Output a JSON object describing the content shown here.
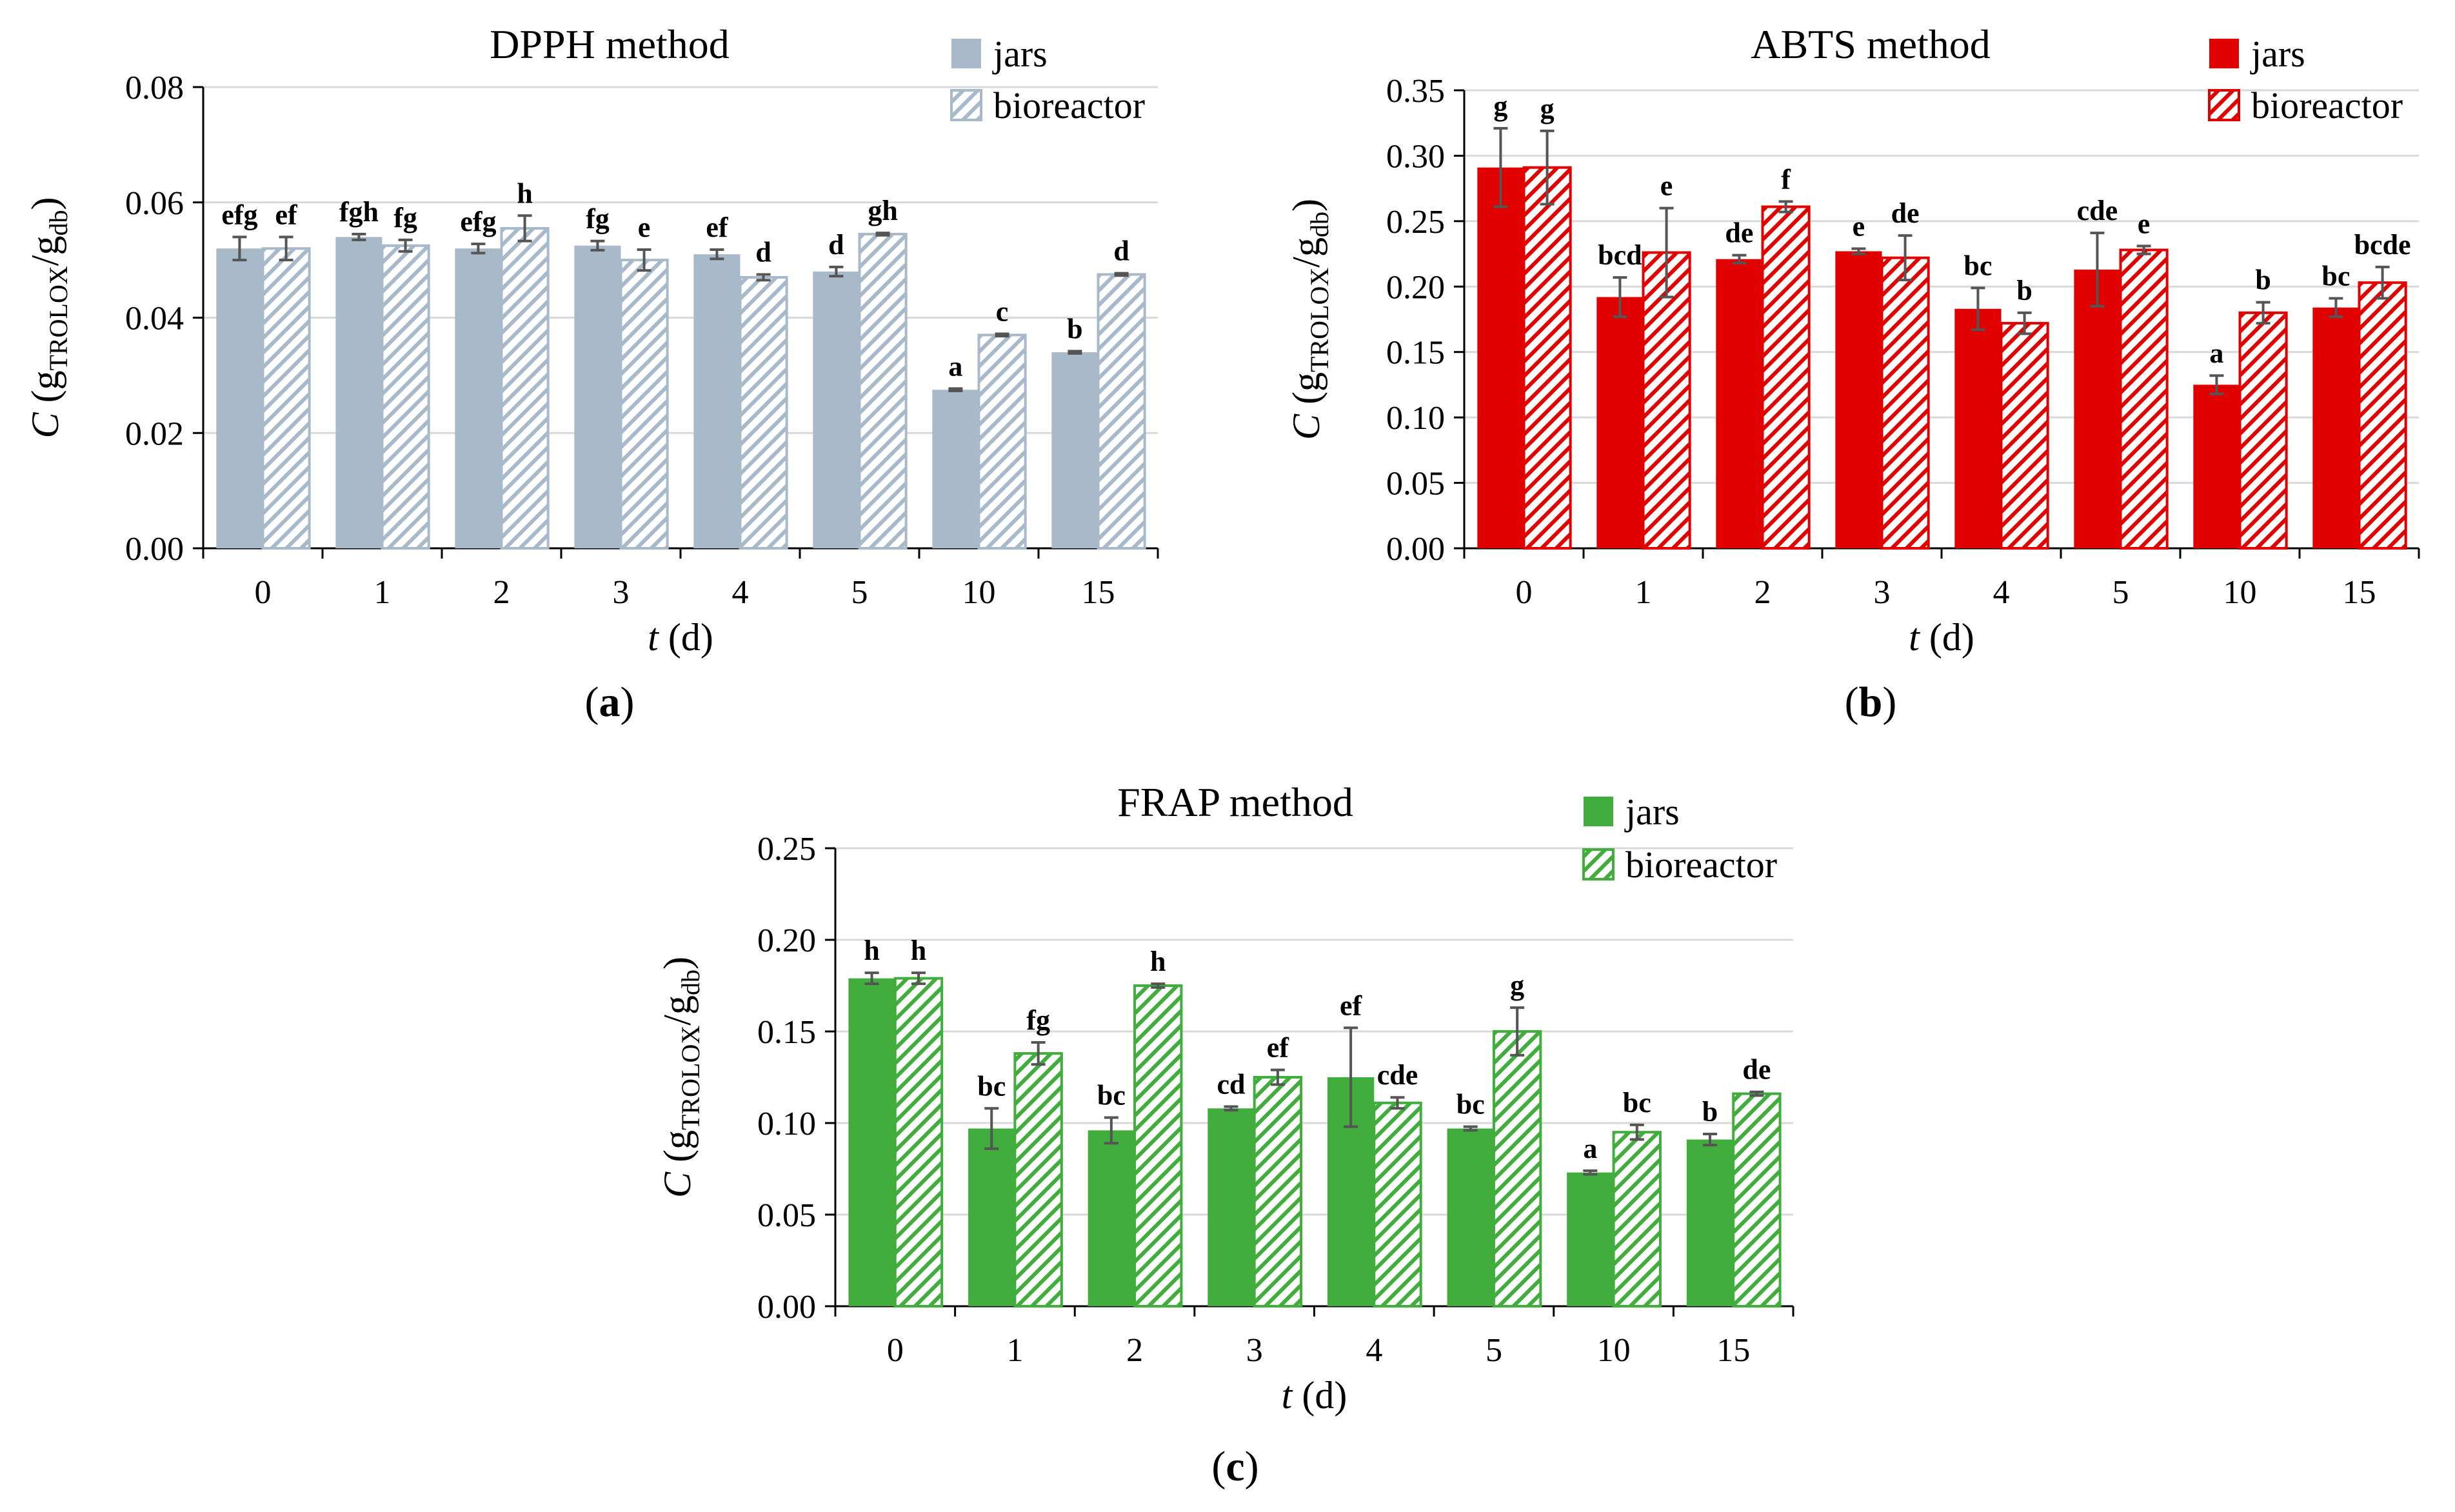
{
  "colors": {
    "dpph_jars": "#a8b9ca",
    "dpph_bioreactor": "#a8b9ca",
    "abts_jars": "#e00000",
    "abts_bioreactor": "#e00000",
    "frap_jars": "#41ad3c",
    "frap_bioreactor": "#41ad3c",
    "error_bar": "#555555",
    "grid": "#d9d9d9"
  },
  "chart_data": [
    {
      "panel_label": "a",
      "type": "bar",
      "title": "DPPH method",
      "xlabel": "t",
      "xlabel_unit": "(d)",
      "ylabel": "C",
      "ylabel_sub1": "TROLOX",
      "ylabel_sub2": "db",
      "ylabel_main": "g",
      "ylabel_mid": "/g",
      "categories": [
        "0",
        "1",
        "2",
        "3",
        "4",
        "5",
        "10",
        "15"
      ],
      "ylim": [
        0,
        0.08
      ],
      "yticks": [
        "0.00",
        "0.02",
        "0.04",
        "0.06",
        "0.08"
      ],
      "grid": true,
      "legend_position": "top-right",
      "series": [
        {
          "name": "jars",
          "fill": "solid",
          "values": [
            0.052,
            0.054,
            0.052,
            0.0525,
            0.051,
            0.048,
            0.0275,
            0.034
          ],
          "errors": [
            0.002,
            0.0005,
            0.0008,
            0.0008,
            0.0008,
            0.0008,
            0.0002,
            0.0002
          ],
          "letters": [
            "efg",
            "fgh",
            "efg",
            "fg",
            "ef",
            "d",
            "a",
            "b"
          ]
        },
        {
          "name": "bioreactor",
          "fill": "hatched",
          "values": [
            0.052,
            0.0525,
            0.0555,
            0.05,
            0.047,
            0.0545,
            0.037,
            0.0475
          ],
          "errors": [
            0.002,
            0.001,
            0.0022,
            0.0018,
            0.0005,
            0.0002,
            0.0002,
            0.0002
          ],
          "letters": [
            "ef",
            "fg",
            "h",
            "e",
            "d",
            "gh",
            "c",
            "d"
          ]
        }
      ]
    },
    {
      "panel_label": "b",
      "type": "bar",
      "title": "ABTS method",
      "xlabel": "t",
      "xlabel_unit": "(d)",
      "ylabel": "C",
      "ylabel_sub1": "TROLOX",
      "ylabel_sub2": "db",
      "ylabel_main": "g",
      "ylabel_mid": "/g",
      "categories": [
        "0",
        "1",
        "2",
        "3",
        "4",
        "5",
        "10",
        "15"
      ],
      "ylim": [
        0,
        0.35
      ],
      "yticks": [
        "0.00",
        "0.05",
        "0.10",
        "0.15",
        "0.20",
        "0.25",
        "0.30",
        "0.35"
      ],
      "grid": true,
      "legend_position": "top-right",
      "series": [
        {
          "name": "jars",
          "fill": "solid",
          "values": [
            0.291,
            0.192,
            0.221,
            0.227,
            0.183,
            0.213,
            0.125,
            0.184
          ],
          "errors": [
            0.03,
            0.015,
            0.003,
            0.002,
            0.016,
            0.028,
            0.007,
            0.007
          ],
          "letters": [
            "g",
            "bcd",
            "de",
            "e",
            "bc",
            "cde",
            "a",
            "bc"
          ]
        },
        {
          "name": "bioreactor",
          "fill": "hatched",
          "values": [
            0.291,
            0.226,
            0.261,
            0.222,
            0.172,
            0.228,
            0.18,
            0.203
          ],
          "errors": [
            0.028,
            0.034,
            0.004,
            0.017,
            0.008,
            0.003,
            0.008,
            0.012
          ],
          "letters": [
            "g",
            "e",
            "f",
            "de",
            "b",
            "e",
            "b",
            "bcde"
          ]
        }
      ]
    },
    {
      "panel_label": "c",
      "type": "bar",
      "title": "FRAP method",
      "xlabel": "t",
      "xlabel_unit": "(d)",
      "ylabel": "C",
      "ylabel_sub1": "TROLOX",
      "ylabel_sub2": "db",
      "ylabel_main": "g",
      "ylabel_mid": "/g",
      "categories": [
        "0",
        "1",
        "2",
        "3",
        "4",
        "5",
        "10",
        "15"
      ],
      "ylim": [
        0,
        0.25
      ],
      "yticks": [
        "0.00",
        "0.05",
        "0.10",
        "0.15",
        "0.20",
        "0.25"
      ],
      "grid": true,
      "legend_position": "top-right",
      "series": [
        {
          "name": "jars",
          "fill": "solid",
          "values": [
            0.179,
            0.097,
            0.096,
            0.108,
            0.125,
            0.097,
            0.073,
            0.091
          ],
          "errors": [
            0.003,
            0.011,
            0.007,
            0.001,
            0.027,
            0.001,
            0.001,
            0.003
          ],
          "letters": [
            "h",
            "bc",
            "bc",
            "cd",
            "ef",
            "bc",
            "a",
            "b"
          ]
        },
        {
          "name": "bioreactor",
          "fill": "hatched",
          "values": [
            0.179,
            0.138,
            0.175,
            0.125,
            0.111,
            0.15,
            0.095,
            0.116
          ],
          "errors": [
            0.003,
            0.006,
            0.001,
            0.004,
            0.003,
            0.013,
            0.004,
            0.001
          ],
          "letters": [
            "h",
            "fg",
            "h",
            "ef",
            "cde",
            "g",
            "bc",
            "de"
          ]
        }
      ]
    }
  ]
}
